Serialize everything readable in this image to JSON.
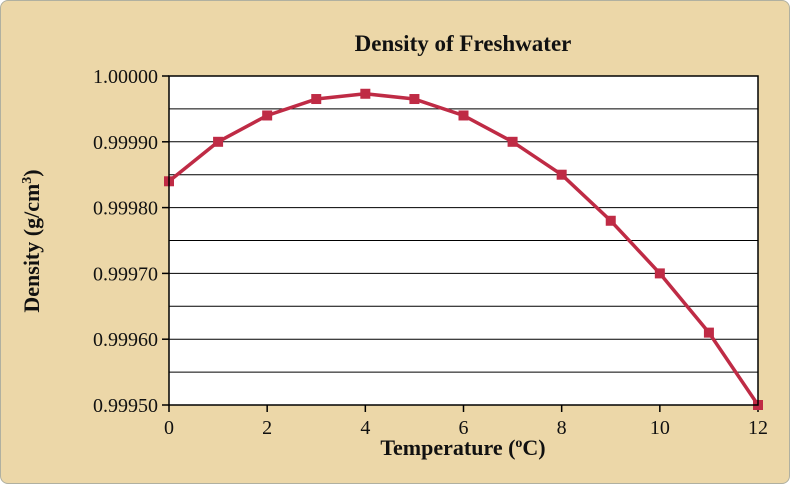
{
  "figure": {
    "title": "Density of Freshwater",
    "x_axis_label_prefix": "Temperature (",
    "x_axis_label_sup": "o",
    "x_axis_label_suffix": "C)",
    "y_axis_label_prefix": "Density (g/cm",
    "y_axis_label_sup": "3",
    "y_axis_label_suffix": ")"
  },
  "chart_data": {
    "type": "line",
    "title": "Density of Freshwater",
    "xlabel": "Temperature (°C)",
    "ylabel": "Density (g/cm³)",
    "x": [
      0,
      1,
      2,
      3,
      4,
      5,
      6,
      7,
      8,
      9,
      10,
      11,
      12
    ],
    "values": [
      0.99984,
      0.9999,
      0.99994,
      0.999965,
      0.999973,
      0.999965,
      0.99994,
      0.9999,
      0.99985,
      0.99978,
      0.9997,
      0.99961,
      0.9995
    ],
    "xlim": [
      0,
      12
    ],
    "ylim": [
      0.9995,
      1.0
    ],
    "x_ticks": [
      0,
      2,
      4,
      6,
      8,
      10,
      12
    ],
    "y_ticks": [
      1.0,
      0.9999,
      0.9998,
      0.9997,
      0.9996,
      0.9995
    ],
    "y_tick_labels": [
      "1.00000",
      "0.99990",
      "0.99980",
      "0.99970",
      "0.99960",
      "0.99950"
    ],
    "y_grid_step": 5e-05,
    "grid": "horizontal",
    "legend": "none",
    "marker": "square",
    "line_color": "#bf2b45",
    "background_color": "#ecd7a8",
    "plot_background_color": "#ffffff"
  }
}
